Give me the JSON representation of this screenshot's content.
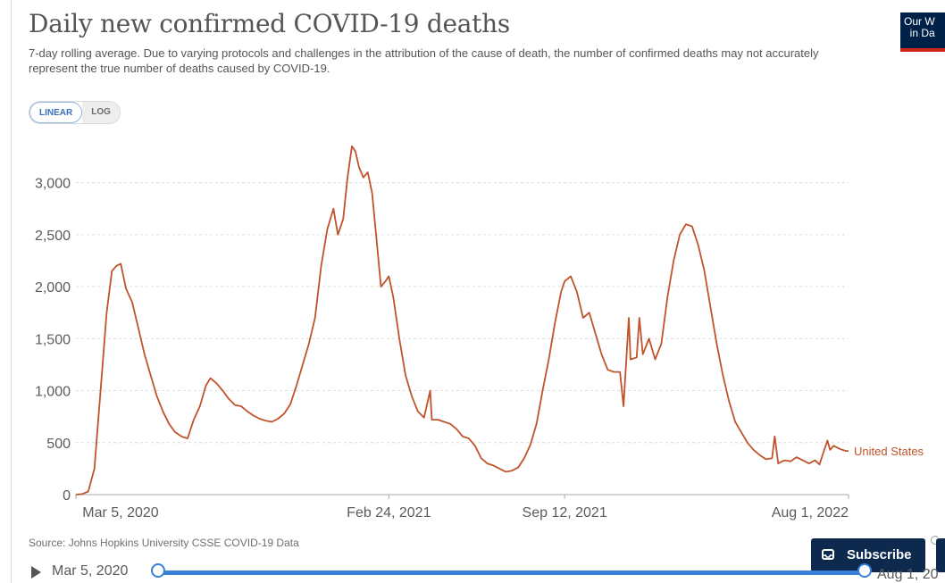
{
  "header": {
    "title": "Daily new confirmed COVID-19 deaths",
    "subtitle": "7-day rolling average. Due to varying protocols and challenges in the attribution of the cause of death, the number of confirmed deaths may not accurately represent the true number of deaths caused by COVID-19.",
    "logo_text": "Our W\n  in Da"
  },
  "scale_toggle": {
    "linear_label": "LINEAR",
    "log_label": "LOG",
    "selected": "LINEAR"
  },
  "footer": {
    "source": "Source: Johns Hopkins University CSSE COVID-19 Data",
    "subscribe_label": "Subscribe",
    "timeline_start": "Mar 5, 2020",
    "timeline_end": "Aug 1, 20"
  },
  "colors": {
    "series": "#c0532b",
    "accent": "#3a7fd6",
    "subscribe_bg": "#0d2a4e",
    "logo_bg": "#002147"
  },
  "chart_data": {
    "type": "line",
    "title": "Daily new confirmed COVID-19 deaths",
    "scale": "linear",
    "ylim": [
      0,
      3400
    ],
    "yticks": [
      0,
      500,
      1000,
      1500,
      2000,
      2500,
      3000
    ],
    "ytick_labels": [
      "0",
      "500",
      "1,000",
      "1,500",
      "2,000",
      "2,500",
      "3,000"
    ],
    "xticks": [
      "2020-03-05",
      "2021-02-24",
      "2021-09-12",
      "2022-08-01"
    ],
    "xtick_labels": [
      "Mar 5, 2020",
      "Feb 24, 2021",
      "Sep 12, 2021",
      "Aug 1, 2022"
    ],
    "xlim": [
      "2020-03-05",
      "2022-08-01"
    ],
    "grid": "horizontal dashed",
    "series": [
      {
        "name": "United States",
        "color": "#c0532b",
        "points": [
          [
            "2020-03-05",
            0
          ],
          [
            "2020-03-12",
            5
          ],
          [
            "2020-03-19",
            30
          ],
          [
            "2020-03-26",
            250
          ],
          [
            "2020-04-02",
            1000
          ],
          [
            "2020-04-09",
            1750
          ],
          [
            "2020-04-15",
            2150
          ],
          [
            "2020-04-20",
            2200
          ],
          [
            "2020-04-25",
            2220
          ],
          [
            "2020-05-01",
            1980
          ],
          [
            "2020-05-08",
            1850
          ],
          [
            "2020-05-15",
            1600
          ],
          [
            "2020-05-22",
            1350
          ],
          [
            "2020-05-29",
            1150
          ],
          [
            "2020-06-05",
            950
          ],
          [
            "2020-06-12",
            800
          ],
          [
            "2020-06-19",
            680
          ],
          [
            "2020-06-26",
            600
          ],
          [
            "2020-07-03",
            560
          ],
          [
            "2020-07-10",
            540
          ],
          [
            "2020-07-17",
            720
          ],
          [
            "2020-07-24",
            850
          ],
          [
            "2020-07-31",
            1050
          ],
          [
            "2020-08-05",
            1120
          ],
          [
            "2020-08-12",
            1070
          ],
          [
            "2020-08-19",
            1000
          ],
          [
            "2020-08-26",
            920
          ],
          [
            "2020-09-02",
            860
          ],
          [
            "2020-09-09",
            850
          ],
          [
            "2020-09-16",
            800
          ],
          [
            "2020-09-23",
            760
          ],
          [
            "2020-09-30",
            730
          ],
          [
            "2020-10-07",
            710
          ],
          [
            "2020-10-14",
            700
          ],
          [
            "2020-10-21",
            730
          ],
          [
            "2020-10-28",
            780
          ],
          [
            "2020-11-04",
            870
          ],
          [
            "2020-11-11",
            1050
          ],
          [
            "2020-11-18",
            1250
          ],
          [
            "2020-11-25",
            1450
          ],
          [
            "2020-12-02",
            1700
          ],
          [
            "2020-12-09",
            2200
          ],
          [
            "2020-12-16",
            2550
          ],
          [
            "2020-12-23",
            2750
          ],
          [
            "2020-12-28",
            2500
          ],
          [
            "2021-01-03",
            2650
          ],
          [
            "2021-01-08",
            3050
          ],
          [
            "2021-01-13",
            3350
          ],
          [
            "2021-01-17",
            3300
          ],
          [
            "2021-01-21",
            3150
          ],
          [
            "2021-01-26",
            3050
          ],
          [
            "2021-01-31",
            3100
          ],
          [
            "2021-02-05",
            2900
          ],
          [
            "2021-02-10",
            2450
          ],
          [
            "2021-02-15",
            2000
          ],
          [
            "2021-02-20",
            2050
          ],
          [
            "2021-02-24",
            2100
          ],
          [
            "2021-03-01",
            1900
          ],
          [
            "2021-03-08",
            1500
          ],
          [
            "2021-03-15",
            1150
          ],
          [
            "2021-03-22",
            950
          ],
          [
            "2021-03-29",
            800
          ],
          [
            "2021-04-05",
            740
          ],
          [
            "2021-04-12",
            1000
          ],
          [
            "2021-04-14",
            720
          ],
          [
            "2021-04-21",
            720
          ],
          [
            "2021-04-28",
            700
          ],
          [
            "2021-05-05",
            680
          ],
          [
            "2021-05-12",
            630
          ],
          [
            "2021-05-19",
            560
          ],
          [
            "2021-05-26",
            540
          ],
          [
            "2021-06-02",
            470
          ],
          [
            "2021-06-09",
            350
          ],
          [
            "2021-06-16",
            300
          ],
          [
            "2021-06-23",
            280
          ],
          [
            "2021-06-30",
            250
          ],
          [
            "2021-07-07",
            220
          ],
          [
            "2021-07-14",
            230
          ],
          [
            "2021-07-21",
            260
          ],
          [
            "2021-07-28",
            350
          ],
          [
            "2021-08-04",
            480
          ],
          [
            "2021-08-11",
            680
          ],
          [
            "2021-08-18",
            1000
          ],
          [
            "2021-08-25",
            1300
          ],
          [
            "2021-09-01",
            1650
          ],
          [
            "2021-09-08",
            1950
          ],
          [
            "2021-09-12",
            2050
          ],
          [
            "2021-09-19",
            2100
          ],
          [
            "2021-09-26",
            1950
          ],
          [
            "2021-10-03",
            1700
          ],
          [
            "2021-10-10",
            1750
          ],
          [
            "2021-10-17",
            1550
          ],
          [
            "2021-10-24",
            1350
          ],
          [
            "2021-10-31",
            1200
          ],
          [
            "2021-11-07",
            1180
          ],
          [
            "2021-11-14",
            1180
          ],
          [
            "2021-11-18",
            850
          ],
          [
            "2021-11-24",
            1700
          ],
          [
            "2021-11-26",
            1300
          ],
          [
            "2021-12-03",
            1320
          ],
          [
            "2021-12-06",
            1700
          ],
          [
            "2021-12-10",
            1350
          ],
          [
            "2021-12-17",
            1500
          ],
          [
            "2021-12-24",
            1300
          ],
          [
            "2021-12-31",
            1450
          ],
          [
            "2022-01-07",
            1900
          ],
          [
            "2022-01-14",
            2250
          ],
          [
            "2022-01-21",
            2500
          ],
          [
            "2022-01-28",
            2600
          ],
          [
            "2022-02-04",
            2580
          ],
          [
            "2022-02-11",
            2400
          ],
          [
            "2022-02-18",
            2150
          ],
          [
            "2022-02-25",
            1800
          ],
          [
            "2022-03-04",
            1450
          ],
          [
            "2022-03-11",
            1150
          ],
          [
            "2022-03-18",
            900
          ],
          [
            "2022-03-25",
            700
          ],
          [
            "2022-04-01",
            600
          ],
          [
            "2022-04-08",
            500
          ],
          [
            "2022-04-15",
            430
          ],
          [
            "2022-04-22",
            380
          ],
          [
            "2022-04-29",
            340
          ],
          [
            "2022-05-06",
            350
          ],
          [
            "2022-05-09",
            560
          ],
          [
            "2022-05-13",
            300
          ],
          [
            "2022-05-20",
            330
          ],
          [
            "2022-05-27",
            320
          ],
          [
            "2022-06-03",
            360
          ],
          [
            "2022-06-10",
            330
          ],
          [
            "2022-06-17",
            300
          ],
          [
            "2022-06-24",
            330
          ],
          [
            "2022-06-29",
            290
          ],
          [
            "2022-07-04",
            420
          ],
          [
            "2022-07-08",
            520
          ],
          [
            "2022-07-11",
            430
          ],
          [
            "2022-07-15",
            470
          ],
          [
            "2022-07-22",
            440
          ],
          [
            "2022-07-29",
            420
          ],
          [
            "2022-08-01",
            420
          ]
        ]
      }
    ]
  }
}
